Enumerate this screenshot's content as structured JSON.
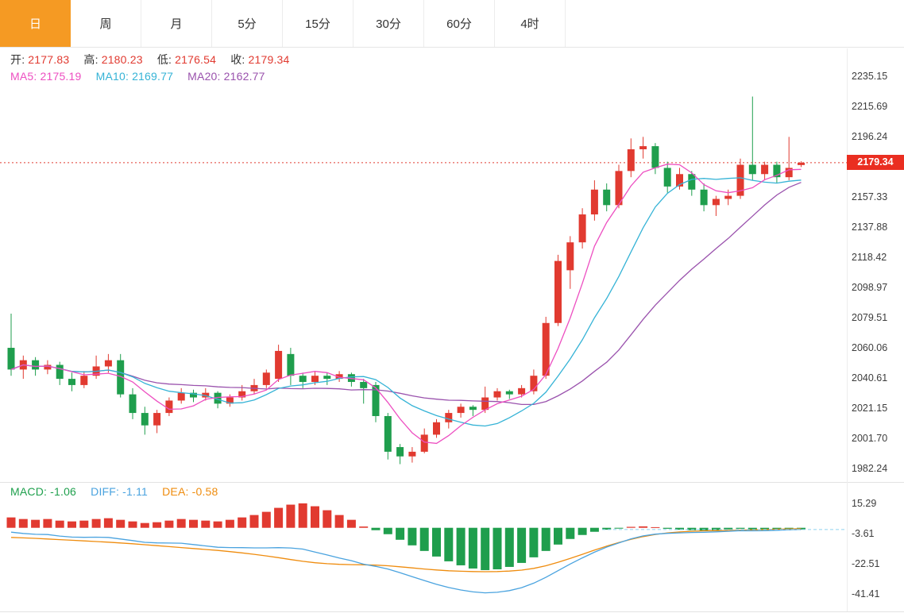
{
  "tabs": {
    "items": [
      {
        "label": "日",
        "active": true
      },
      {
        "label": "周",
        "active": false
      },
      {
        "label": "月",
        "active": false
      },
      {
        "label": "5分",
        "active": false
      },
      {
        "label": "15分",
        "active": false
      },
      {
        "label": "30分",
        "active": false
      },
      {
        "label": "60分",
        "active": false
      },
      {
        "label": "4时",
        "active": false
      }
    ]
  },
  "price_header": {
    "open_label": "开:",
    "open_value": "2177.83",
    "high_label": "高:",
    "high_value": "2180.23",
    "low_label": "低:",
    "low_value": "2176.54",
    "close_label": "收:",
    "close_value": "2179.34"
  },
  "ma_header": {
    "ma5_label": "MA5:",
    "ma5_value": "2175.19",
    "ma10_label": "MA10:",
    "ma10_value": "2169.77",
    "ma20_label": "MA20:",
    "ma20_value": "2162.77"
  },
  "macd_header": {
    "macd_label": "MACD:",
    "macd_value": "-1.06",
    "diff_label": "DIFF:",
    "diff_value": "-1.11",
    "dea_label": "DEA:",
    "dea_value": "-0.58"
  },
  "price_badge": "2179.34",
  "colors": {
    "up": "#e13a30",
    "down": "#1f9e4d",
    "ma5": "#ed4fc1",
    "ma10": "#35b3d6",
    "ma20": "#9a52ad",
    "diff_line": "#4aa3df",
    "dea_line": "#ef8c0e",
    "macd_text": "#1fa04d",
    "diff_text": "#4aa3df",
    "dea_text": "#ef8c0e",
    "ohlc_value": "#e13a30",
    "badge_bg": "#ea2e21",
    "tab_active_bg": "#f59a23",
    "dotted_price_line": "#e13a30",
    "macd_dashed_line": "#8ed2f0",
    "axis_text": "#3c3c3c",
    "grid_line": "#e3e3e3"
  },
  "chart_data": {
    "type": "candlestick+macd",
    "timeframe": "日",
    "price_panel": {
      "axis_labels": [
        2235.15,
        2215.69,
        2196.24,
        2157.33,
        2137.88,
        2118.42,
        2098.97,
        2079.51,
        2060.06,
        2040.61,
        2021.15,
        2001.7,
        1982.24
      ],
      "value_range": [
        1973.5,
        2252.5
      ],
      "current_price": 2179.34,
      "ma_periods": [
        5,
        10,
        20
      ],
      "ma_latest": {
        "ma5": 2175.19,
        "ma10": 2169.77,
        "ma20": 2162.77
      },
      "ohlc_latest": {
        "open": 2177.83,
        "high": 2180.23,
        "low": 2176.54,
        "close": 2179.34
      },
      "candles_ohlc": [
        [
          2060,
          2082,
          2042,
          2046
        ],
        [
          2046,
          2055,
          2040,
          2052
        ],
        [
          2052,
          2054,
          2042,
          2046
        ],
        [
          2046,
          2052,
          2043,
          2049
        ],
        [
          2049,
          2051,
          2036,
          2040
        ],
        [
          2040,
          2044,
          2032,
          2036
        ],
        [
          2036,
          2045,
          2034,
          2042
        ],
        [
          2042,
          2055,
          2040,
          2048
        ],
        [
          2048,
          2056,
          2044,
          2052
        ],
        [
          2052,
          2056,
          2028,
          2030
        ],
        [
          2030,
          2034,
          2014,
          2018
        ],
        [
          2018,
          2022,
          2004,
          2010
        ],
        [
          2010,
          2020,
          2005,
          2018
        ],
        [
          2018,
          2028,
          2016,
          2026
        ],
        [
          2026,
          2034,
          2024,
          2031
        ],
        [
          2031,
          2033,
          2025,
          2028
        ],
        [
          2028,
          2034,
          2026,
          2031
        ],
        [
          2031,
          2032,
          2021,
          2024
        ],
        [
          2024,
          2030,
          2022,
          2028
        ],
        [
          2028,
          2036,
          2026,
          2032
        ],
        [
          2032,
          2040,
          2030,
          2036
        ],
        [
          2036,
          2046,
          2034,
          2044
        ],
        [
          2040,
          2062,
          2038,
          2058
        ],
        [
          2056,
          2060,
          2036,
          2042
        ],
        [
          2042,
          2044,
          2034,
          2038
        ],
        [
          2038,
          2045,
          2036,
          2042
        ],
        [
          2042,
          2044,
          2036,
          2040
        ],
        [
          2040,
          2045,
          2038,
          2043
        ],
        [
          2043,
          2044,
          2035,
          2038
        ],
        [
          2038,
          2040,
          2024,
          2034
        ],
        [
          2036,
          2038,
          2012,
          2016
        ],
        [
          2016,
          2018,
          1988,
          1993
        ],
        [
          1996,
          1998,
          1985,
          1990
        ],
        [
          1990,
          1996,
          1986,
          1993
        ],
        [
          1993,
          2008,
          1992,
          2004
        ],
        [
          2004,
          2014,
          2002,
          2012
        ],
        [
          2012,
          2020,
          2008,
          2018
        ],
        [
          2018,
          2024,
          2015,
          2022
        ],
        [
          2022,
          2023,
          2016,
          2020
        ],
        [
          2020,
          2035,
          2018,
          2028
        ],
        [
          2028,
          2034,
          2026,
          2032
        ],
        [
          2032,
          2033,
          2027,
          2030
        ],
        [
          2030,
          2036,
          2028,
          2034
        ],
        [
          2032,
          2046,
          2030,
          2042
        ],
        [
          2042,
          2080,
          2040,
          2076
        ],
        [
          2076,
          2120,
          2074,
          2116
        ],
        [
          2110,
          2132,
          2098,
          2128
        ],
        [
          2128,
          2150,
          2124,
          2146
        ],
        [
          2146,
          2168,
          2142,
          2162
        ],
        [
          2162,
          2166,
          2148,
          2152
        ],
        [
          2152,
          2178,
          2150,
          2174
        ],
        [
          2174,
          2195,
          2170,
          2188
        ],
        [
          2188,
          2196,
          2182,
          2190
        ],
        [
          2190,
          2192,
          2172,
          2176
        ],
        [
          2176,
          2180,
          2160,
          2164
        ],
        [
          2164,
          2176,
          2162,
          2172
        ],
        [
          2172,
          2174,
          2158,
          2162
        ],
        [
          2162,
          2166,
          2148,
          2152
        ],
        [
          2152,
          2158,
          2145,
          2156
        ],
        [
          2156,
          2162,
          2152,
          2158
        ],
        [
          2158,
          2182,
          2156,
          2178
        ],
        [
          2178,
          2222,
          2168,
          2172
        ],
        [
          2172,
          2180,
          2168,
          2178
        ],
        [
          2178,
          2180,
          2166,
          2170
        ],
        [
          2170,
          2196,
          2168,
          2176
        ],
        [
          2177.83,
          2180.23,
          2176.54,
          2179.34
        ]
      ]
    },
    "macd_panel": {
      "axis_labels": [
        15.29,
        -3.61,
        -22.51,
        -41.41
      ],
      "latest": {
        "macd": -1.06,
        "diff": -1.11,
        "dea": -0.58
      },
      "hist": [
        6.5,
        5.5,
        5.0,
        5.5,
        4.5,
        4.0,
        4.5,
        5.5,
        6.0,
        5.0,
        4.0,
        3.0,
        3.5,
        4.5,
        5.5,
        5.0,
        4.5,
        4.0,
        5.0,
        6.5,
        8.0,
        10.0,
        12.5,
        14.5,
        15.3,
        13.5,
        11.0,
        8.0,
        5.0,
        0.8,
        -1.5,
        -4.0,
        -7.5,
        -11.0,
        -14.5,
        -18.0,
        -21.0,
        -23.5,
        -25.5,
        -26.5,
        -26.0,
        -24.5,
        -22.0,
        -18.5,
        -14.5,
        -10.5,
        -7.0,
        -4.5,
        -2.5,
        -1.2,
        -0.5,
        0.6,
        0.9,
        0.4,
        -0.6,
        -1.2,
        -1.5,
        -1.8,
        -1.5,
        -1.0,
        -0.6,
        -1.2,
        -1.5,
        -1.3,
        -1.1,
        -1.06
      ],
      "diff": [
        -2.75,
        -3.55,
        -4.1,
        -4.25,
        -5.15,
        -5.8,
        -5.95,
        -5.85,
        -6.0,
        -7.0,
        -8.0,
        -9.1,
        -9.45,
        -9.55,
        -9.65,
        -10.5,
        -11.35,
        -12.2,
        -12.4,
        -12.45,
        -12.6,
        -12.6,
        -12.45,
        -12.65,
        -13.35,
        -15.15,
        -17.0,
        -18.9,
        -20.6,
        -22.8,
        -24.15,
        -25.8,
        -28.15,
        -30.6,
        -33.05,
        -35.4,
        -37.4,
        -38.95,
        -40.15,
        -40.75,
        -40.4,
        -39.35,
        -37.5,
        -34.65,
        -31.05,
        -26.85,
        -22.7,
        -18.85,
        -15.25,
        -12.1,
        -9.45,
        -6.9,
        -5.05,
        -4.0,
        -3.5,
        -3.2,
        -2.95,
        -2.8,
        -2.55,
        -2.2,
        -1.8,
        -1.9,
        -1.85,
        -1.55,
        -1.25,
        -1.11
      ],
      "dea": [
        -6.0,
        -6.3,
        -6.6,
        -7.0,
        -7.4,
        -7.8,
        -8.2,
        -8.6,
        -9.0,
        -9.5,
        -10.0,
        -10.6,
        -11.2,
        -11.8,
        -12.4,
        -13.0,
        -13.6,
        -14.2,
        -14.9,
        -15.7,
        -16.6,
        -17.6,
        -18.7,
        -19.9,
        -21.0,
        -21.9,
        -22.5,
        -22.9,
        -23.1,
        -23.2,
        -23.4,
        -23.8,
        -24.4,
        -25.1,
        -25.8,
        -26.4,
        -26.9,
        -27.2,
        -27.4,
        -27.5,
        -27.4,
        -27.1,
        -26.5,
        -25.4,
        -23.8,
        -21.6,
        -19.2,
        -16.6,
        -14.0,
        -11.5,
        -9.2,
        -7.2,
        -5.5,
        -4.2,
        -3.2,
        -2.6,
        -2.2,
        -1.9,
        -1.8,
        -1.7,
        -1.5,
        -1.3,
        -1.1,
        -0.9,
        -0.7,
        -0.58
      ]
    }
  }
}
